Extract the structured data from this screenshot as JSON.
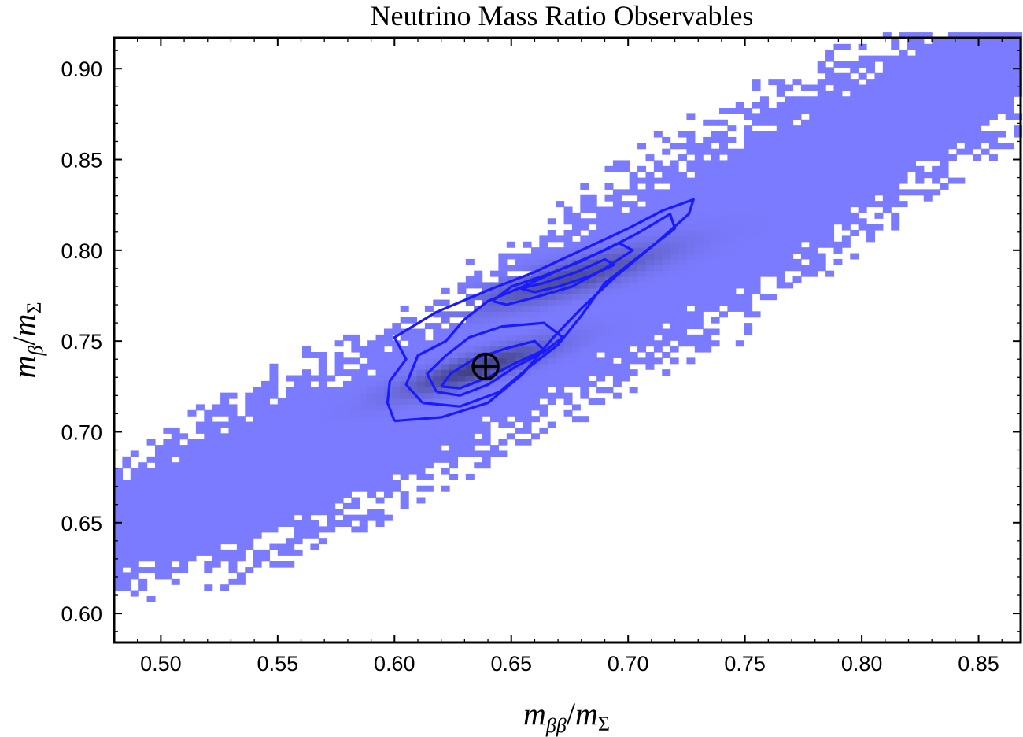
{
  "chart_data": {
    "type": "heatmap",
    "title": "Neutrino Mass Ratio Observables",
    "xlabel": {
      "base": "m",
      "sub1": "ββ",
      "slash": "/",
      "base2": "m",
      "sub2": "Σ"
    },
    "ylabel": {
      "base": "m",
      "sub1": "β",
      "slash": "/",
      "base2": "m",
      "sub2": "Σ"
    },
    "xlim": [
      0.48,
      0.868
    ],
    "ylim": [
      0.584,
      0.917
    ],
    "x_ticks": [
      0.5,
      0.55,
      0.6,
      0.65,
      0.7,
      0.75,
      0.8,
      0.85
    ],
    "x_tick_labels": [
      "0.50",
      "0.55",
      "0.60",
      "0.65",
      "0.70",
      "0.75",
      "0.80",
      "0.85"
    ],
    "y_ticks": [
      0.6,
      0.65,
      0.7,
      0.75,
      0.8,
      0.85,
      0.9
    ],
    "y_tick_labels": [
      "0.60",
      "0.65",
      "0.70",
      "0.75",
      "0.80",
      "0.85",
      "0.90"
    ],
    "density_color": "#7b7bff",
    "density_dark_color": "#3a3a78",
    "contour_color": "#1a1aff",
    "band": {
      "description_points_x": [
        0.5,
        0.55,
        0.6,
        0.65,
        0.7,
        0.75,
        0.8,
        0.85
      ],
      "center_y": [
        0.655,
        0.68,
        0.71,
        0.745,
        0.785,
        0.82,
        0.858,
        0.898
      ],
      "half_width_y": [
        0.03,
        0.04,
        0.035,
        0.04,
        0.045,
        0.045,
        0.04,
        0.035
      ]
    },
    "peaks": [
      {
        "x": 0.635,
        "y": 0.735,
        "sx": 0.022,
        "sy": 0.01,
        "rho": 0.85,
        "amp": 1.0
      },
      {
        "x": 0.675,
        "y": 0.785,
        "sx": 0.028,
        "sy": 0.012,
        "rho": 0.85,
        "amp": 0.8
      }
    ],
    "contours": [
      {
        "level": 1,
        "points": [
          [
            0.6,
            0.706
          ],
          [
            0.597,
            0.716
          ],
          [
            0.598,
            0.728
          ],
          [
            0.605,
            0.74
          ],
          [
            0.6,
            0.752
          ],
          [
            0.618,
            0.766
          ],
          [
            0.64,
            0.778
          ],
          [
            0.66,
            0.788
          ],
          [
            0.68,
            0.8
          ],
          [
            0.7,
            0.812
          ],
          [
            0.715,
            0.822
          ],
          [
            0.728,
            0.828
          ],
          [
            0.726,
            0.82
          ],
          [
            0.712,
            0.804
          ],
          [
            0.695,
            0.786
          ],
          [
            0.68,
            0.768
          ],
          [
            0.668,
            0.752
          ],
          [
            0.655,
            0.732
          ],
          [
            0.64,
            0.716
          ],
          [
            0.62,
            0.708
          ],
          [
            0.6,
            0.706
          ]
        ]
      },
      {
        "level": 2,
        "points": [
          [
            0.612,
            0.716
          ],
          [
            0.605,
            0.726
          ],
          [
            0.61,
            0.742
          ],
          [
            0.622,
            0.75
          ],
          [
            0.63,
            0.762
          ],
          [
            0.64,
            0.772
          ],
          [
            0.655,
            0.78
          ],
          [
            0.672,
            0.79
          ],
          [
            0.69,
            0.8
          ],
          [
            0.705,
            0.81
          ],
          [
            0.718,
            0.82
          ],
          [
            0.72,
            0.812
          ],
          [
            0.706,
            0.798
          ],
          [
            0.69,
            0.782
          ],
          [
            0.68,
            0.764
          ],
          [
            0.67,
            0.748
          ],
          [
            0.658,
            0.736
          ],
          [
            0.645,
            0.722
          ],
          [
            0.628,
            0.714
          ],
          [
            0.612,
            0.716
          ]
        ]
      },
      {
        "level": 3,
        "points": [
          [
            0.618,
            0.722
          ],
          [
            0.614,
            0.732
          ],
          [
            0.622,
            0.742
          ],
          [
            0.632,
            0.752
          ],
          [
            0.646,
            0.758
          ],
          [
            0.664,
            0.76
          ],
          [
            0.672,
            0.752
          ],
          [
            0.664,
            0.744
          ],
          [
            0.652,
            0.736
          ],
          [
            0.64,
            0.726
          ],
          [
            0.628,
            0.72
          ],
          [
            0.618,
            0.722
          ]
        ]
      },
      {
        "level": 4,
        "points": [
          [
            0.642,
            0.772
          ],
          [
            0.65,
            0.78
          ],
          [
            0.664,
            0.786
          ],
          [
            0.68,
            0.794
          ],
          [
            0.696,
            0.804
          ],
          [
            0.702,
            0.8
          ],
          [
            0.69,
            0.79
          ],
          [
            0.676,
            0.78
          ],
          [
            0.66,
            0.774
          ],
          [
            0.648,
            0.77
          ],
          [
            0.642,
            0.772
          ]
        ]
      },
      {
        "level": 5,
        "points": [
          [
            0.62,
            0.725
          ],
          [
            0.624,
            0.732
          ],
          [
            0.634,
            0.74
          ],
          [
            0.648,
            0.746
          ],
          [
            0.66,
            0.75
          ],
          [
            0.664,
            0.745
          ],
          [
            0.652,
            0.738
          ],
          [
            0.64,
            0.73
          ],
          [
            0.628,
            0.724
          ],
          [
            0.62,
            0.725
          ]
        ]
      },
      {
        "level": 6,
        "points": [
          [
            0.654,
            0.779
          ],
          [
            0.664,
            0.782
          ],
          [
            0.678,
            0.788
          ],
          [
            0.69,
            0.795
          ],
          [
            0.694,
            0.792
          ],
          [
            0.684,
            0.786
          ],
          [
            0.67,
            0.78
          ],
          [
            0.66,
            0.777
          ],
          [
            0.654,
            0.779
          ]
        ]
      }
    ],
    "marker": {
      "x": 0.639,
      "y": 0.736,
      "symbol": "circled-plus"
    }
  }
}
